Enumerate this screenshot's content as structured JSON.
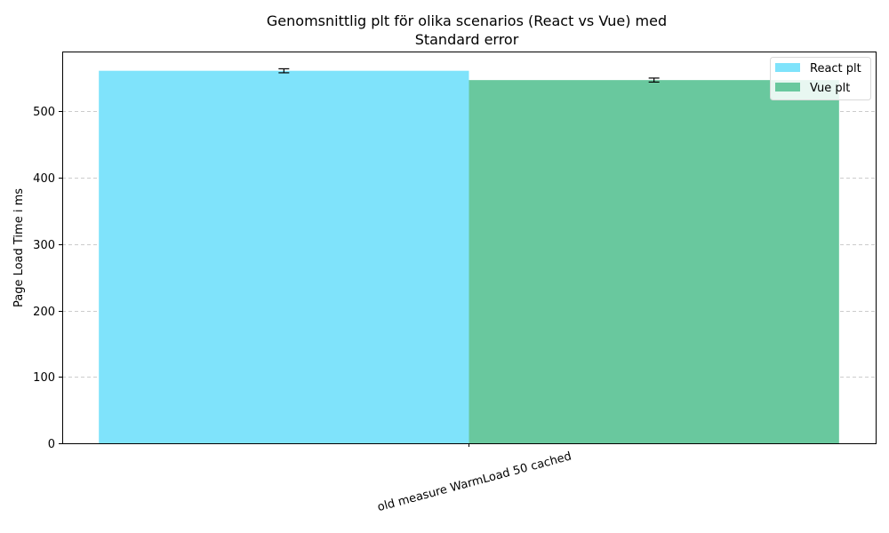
{
  "chart_data": {
    "type": "bar",
    "title": "Genomsnittlig plt för olika scenarios (React vs Vue) med",
    "subtitle": "Standard error",
    "xlabel": "",
    "ylabel": "Page Load Time i ms",
    "categories": [
      "old measure WarmLoad 50 cached"
    ],
    "series": [
      {
        "name": "React plt",
        "values": [
          561
        ],
        "errors": [
          3
        ],
        "color": "#7fe3fb"
      },
      {
        "name": "Vue plt",
        "values": [
          547
        ],
        "errors": [
          3
        ],
        "color": "#69c89e"
      }
    ],
    "ylim": [
      0,
      590
    ],
    "yticks": [
      0,
      100,
      200,
      300,
      400,
      500
    ],
    "grid": "y-dashed",
    "legend_position": "top-right"
  }
}
